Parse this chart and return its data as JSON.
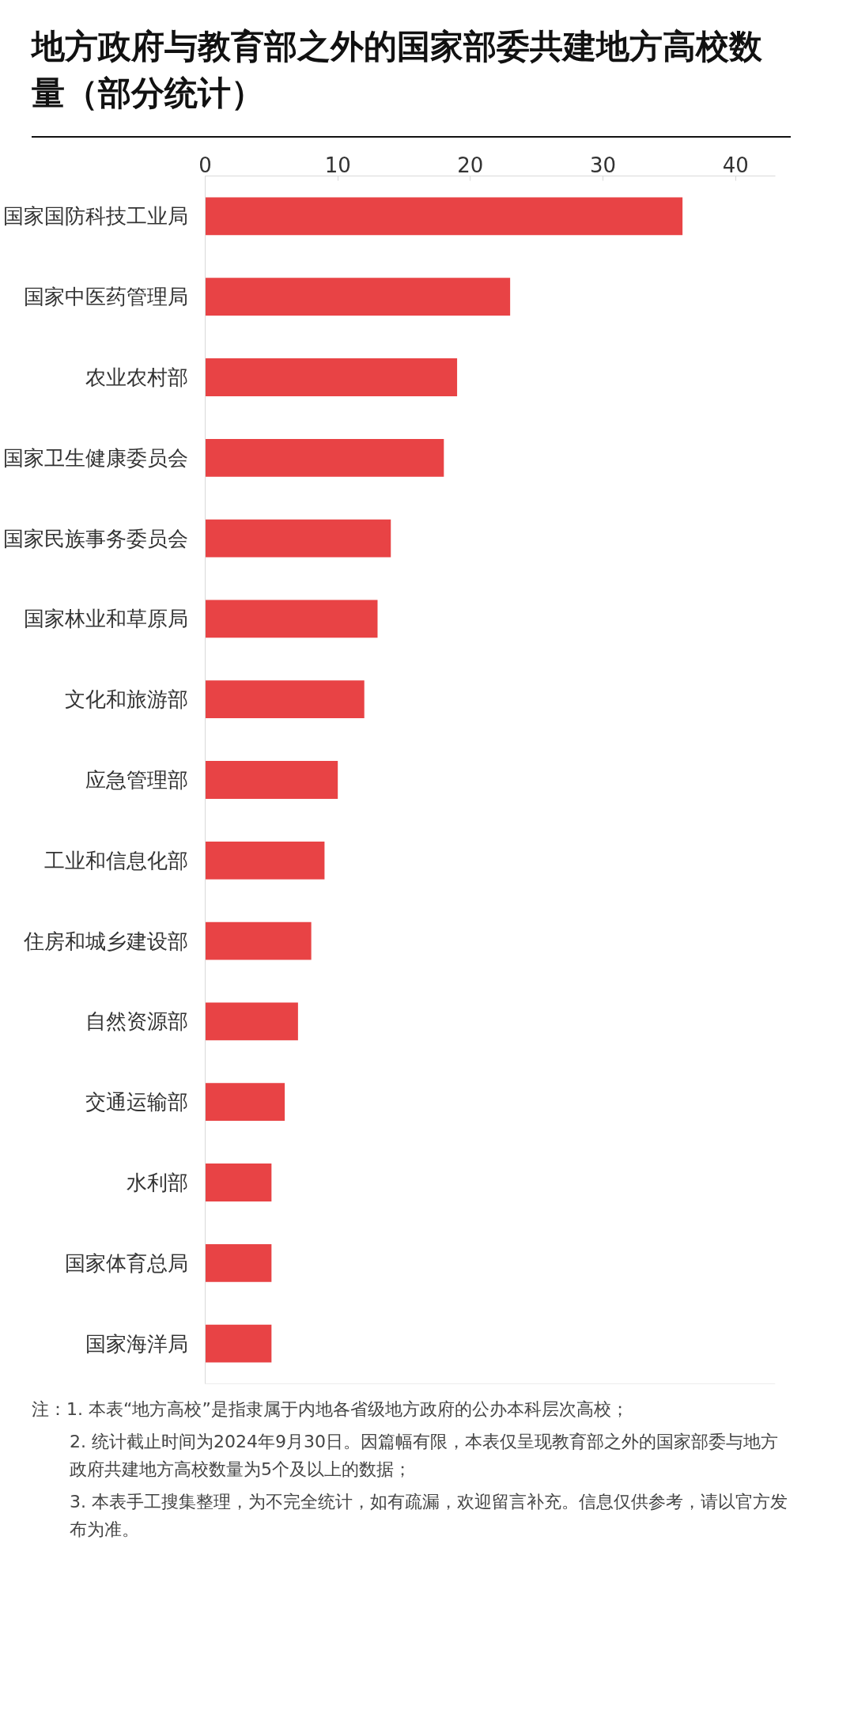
{
  "chart_data": {
    "type": "bar",
    "orientation": "horizontal",
    "title": "地方政府与教育部之外的国家部委共建地方高校数量（部分统计）",
    "categories": [
      "国家国防科技工业局",
      "国家中医药管理局",
      "农业农村部",
      "国家卫生健康委员会",
      "国家民族事务委员会",
      "国家林业和草原局",
      "文化和旅游部",
      "应急管理部",
      "工业和信息化部",
      "住房和城乡建设部",
      "自然资源部",
      "交通运输部",
      "水利部",
      "国家体育总局",
      "国家海洋局"
    ],
    "values": [
      36,
      23,
      19,
      18,
      14,
      13,
      12,
      10,
      9,
      8,
      7,
      6,
      5,
      5,
      5
    ],
    "color": "#e84345",
    "xlim": [
      0,
      43
    ],
    "xticks": [
      0,
      10,
      20,
      30,
      40
    ],
    "grid": false,
    "annotations": [
      "注：1. 本表“地方高校”是指隶属于内地各省级地方政府的公办本科层次高校；",
      "2. 统计截止时间为2024年9月30日。因篇幅有限，本表仅呈现教育部之外的国家部委与地方政府共建地方高校数量为5个及以上的数据；",
      "3. 本表手工搜集整理，为不完全统计，如有疏漏，欢迎留言补充。信息仅供参考，请以官方发布为准。"
    ]
  }
}
